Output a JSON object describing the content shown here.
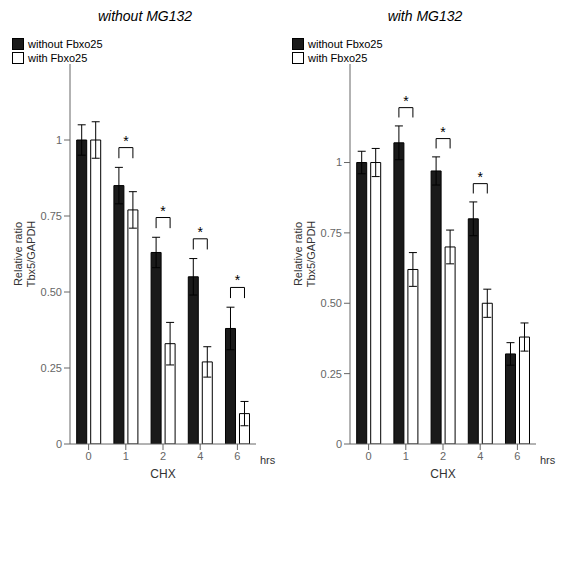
{
  "chart_data": [
    {
      "type": "bar",
      "title": "without MG132",
      "xlabel": "CHX",
      "ylabel": "Relative ratio\nTbx5/GAPDH",
      "categories": [
        "0",
        "1",
        "2",
        "4",
        "6"
      ],
      "series": [
        {
          "name": "without Fbxo25",
          "color": "#1a1a1a",
          "values": [
            1.0,
            0.85,
            0.63,
            0.55,
            0.38
          ],
          "errors": [
            0.05,
            0.06,
            0.05,
            0.06,
            0.07
          ]
        },
        {
          "name": "with Fbxo25",
          "color": "#ffffff",
          "values": [
            1.0,
            0.77,
            0.33,
            0.27,
            0.1
          ],
          "errors": [
            0.06,
            0.06,
            0.07,
            0.05,
            0.04
          ]
        }
      ],
      "ylim": [
        0,
        1.25
      ],
      "yticks": [
        0,
        0.25,
        {
          "value": 0.5,
          "label": "0.50"
        },
        0.75,
        1
      ],
      "legend": "upper right",
      "annotations": [
        {
          "text": "*",
          "category": "1"
        },
        {
          "text": "*",
          "category": "2"
        },
        {
          "text": "*",
          "category": "4"
        },
        {
          "text": "*",
          "category": "6"
        },
        {
          "text": "hrs"
        }
      ]
    },
    {
      "type": "bar",
      "title": "with MG132",
      "xlabel": "CHX",
      "ylabel": "Relative ratio\nTbx5/GAPDH",
      "categories": [
        "0",
        "1",
        "2",
        "4",
        "6"
      ],
      "series": [
        {
          "name": "without Fbxo25",
          "color": "#1a1a1a",
          "values": [
            1.0,
            1.07,
            0.97,
            0.8,
            0.32
          ],
          "errors": [
            0.04,
            0.06,
            0.05,
            0.06,
            0.04
          ]
        },
        {
          "name": "with Fbxo25",
          "color": "#ffffff",
          "values": [
            1.0,
            0.62,
            0.7,
            0.5,
            0.38
          ],
          "errors": [
            0.05,
            0.06,
            0.06,
            0.05,
            0.05
          ]
        }
      ],
      "ylim": [
        0,
        1.35
      ],
      "yticks": [
        0,
        0.25,
        {
          "value": 0.5,
          "label": "0.50"
        },
        0.75,
        1
      ],
      "legend": "upper right",
      "annotations": [
        {
          "text": "*",
          "category": "1"
        },
        {
          "text": "*",
          "category": "2"
        },
        {
          "text": "*",
          "category": "4"
        },
        {
          "text": "hrs"
        }
      ]
    }
  ]
}
